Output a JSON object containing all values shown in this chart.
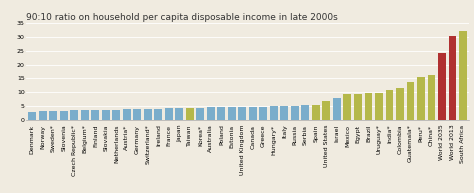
{
  "title": "90:10 ratio on household per capita disposable income in late 2000s",
  "ylim": [
    0,
    35
  ],
  "yticks": [
    0,
    5,
    10,
    15,
    20,
    25,
    30,
    35
  ],
  "categories": [
    "Denmark",
    "Norway",
    "Sweden*",
    "Slovenia",
    "Czech Republic*",
    "Belgium*",
    "Finland",
    "Slovakia",
    "Netherlands",
    "Austria*",
    "Germany",
    "Switzerland*",
    "Ireland",
    "France",
    "Japan",
    "Taiwan",
    "Korea*",
    "Australia",
    "Poland",
    "Estonia",
    "United Kingdom",
    "Canada",
    "Greece",
    "Hungary*",
    "Italy",
    "Russia",
    "Serbia",
    "Spain",
    "United States",
    "Israel",
    "Mexico",
    "Egypt",
    "Brazil",
    "Uruguay*",
    "India*",
    "Colombia",
    "Guatemala*",
    "Peru*",
    "China*",
    "World 2035",
    "World 2013",
    "South Africa"
  ],
  "values": [
    2.8,
    3.1,
    3.2,
    3.2,
    3.4,
    3.4,
    3.4,
    3.5,
    3.6,
    3.7,
    3.8,
    3.8,
    4.0,
    4.1,
    4.2,
    4.3,
    4.4,
    4.5,
    4.5,
    4.5,
    4.6,
    4.7,
    4.7,
    4.8,
    5.0,
    5.1,
    5.2,
    5.3,
    6.9,
    8.0,
    9.2,
    9.4,
    9.7,
    9.8,
    10.8,
    11.5,
    13.8,
    15.5,
    16.3,
    24.0,
    30.5,
    32.0
  ],
  "colors": {
    "blue": "#7aadcb",
    "olive": "#b5b84a",
    "red": "#b03030"
  },
  "bar_colors": [
    "blue",
    "blue",
    "blue",
    "blue",
    "blue",
    "blue",
    "blue",
    "blue",
    "blue",
    "blue",
    "blue",
    "blue",
    "blue",
    "blue",
    "blue",
    "olive",
    "blue",
    "blue",
    "blue",
    "blue",
    "blue",
    "blue",
    "blue",
    "blue",
    "blue",
    "blue",
    "blue",
    "olive",
    "olive",
    "blue",
    "olive",
    "olive",
    "olive",
    "olive",
    "olive",
    "olive",
    "olive",
    "olive",
    "olive",
    "red",
    "red",
    "olive"
  ],
  "background_color": "#f0ebe0",
  "title_fontsize": 6.5,
  "tick_fontsize": 4.5
}
